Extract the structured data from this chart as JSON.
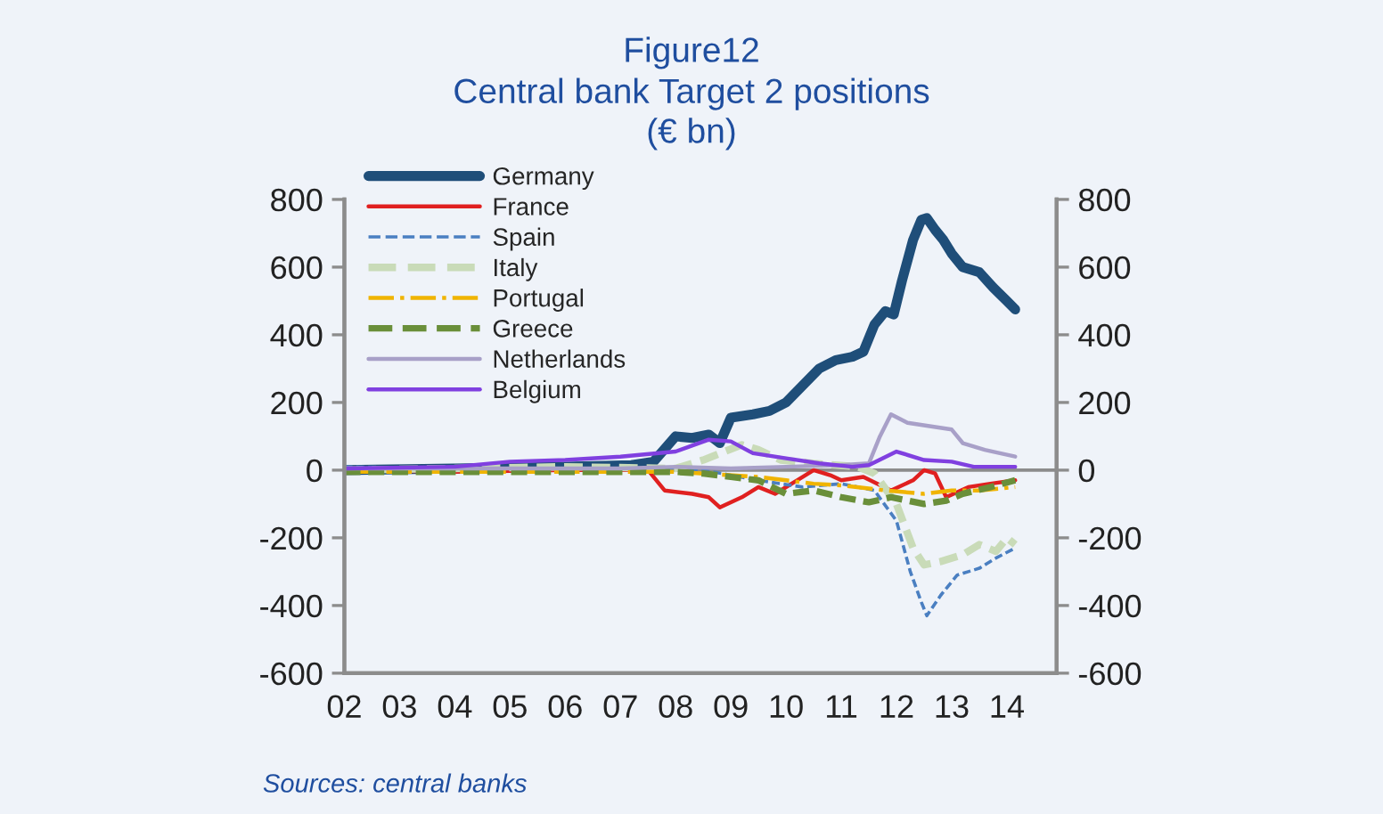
{
  "chart_data": {
    "type": "line",
    "title": "Figure12",
    "subtitle": "Central bank Target 2 positions\n(€ bn)",
    "xlim": [
      2002,
      2014.9
    ],
    "xticks": [
      {
        "value": 2002,
        "label": "02"
      },
      {
        "value": 2003,
        "label": "03"
      },
      {
        "value": 2004,
        "label": "04"
      },
      {
        "value": 2005,
        "label": "05"
      },
      {
        "value": 2006,
        "label": "06"
      },
      {
        "value": 2007,
        "label": "07"
      },
      {
        "value": 2008,
        "label": "08"
      },
      {
        "value": 2009,
        "label": "09"
      },
      {
        "value": 2010,
        "label": "10"
      },
      {
        "value": 2011,
        "label": "11"
      },
      {
        "value": 2012,
        "label": "12"
      },
      {
        "value": 2013,
        "label": "13"
      },
      {
        "value": 2014,
        "label": "14"
      }
    ],
    "ylim": [
      -600,
      800
    ],
    "yticks": [
      -600,
      -400,
      -200,
      0,
      200,
      400,
      600,
      800
    ],
    "y2lim": [
      -600,
      800
    ],
    "y2ticks": [
      -600,
      -400,
      -200,
      0,
      200,
      400,
      600,
      800
    ],
    "grid": false,
    "legend": "top left",
    "ref_lines": [
      {
        "axis": "y",
        "value": 0,
        "color": "#8c8c8c"
      }
    ],
    "series": [
      {
        "name": "Germany",
        "color": "#1f4e79",
        "line_style": "solid",
        "x": [
          2002,
          2004,
          2006,
          2007.2,
          2007.6,
          2008.0,
          2008.3,
          2008.6,
          2008.8,
          2009.0,
          2009.4,
          2009.7,
          2010.0,
          2010.3,
          2010.6,
          2010.9,
          2011.2,
          2011.4,
          2011.6,
          2011.8,
          2011.95,
          2012.1,
          2012.3,
          2012.45,
          2012.55,
          2012.7,
          2012.85,
          2013.0,
          2013.2,
          2013.5,
          2013.75,
          2014.0,
          2014.15
        ],
        "values": [
          0,
          5,
          10,
          15,
          25,
          100,
          95,
          105,
          80,
          155,
          165,
          175,
          200,
          250,
          300,
          325,
          335,
          350,
          430,
          470,
          460,
          560,
          680,
          740,
          745,
          710,
          680,
          640,
          600,
          585,
          540,
          500,
          475
        ]
      },
      {
        "name": "France",
        "color": "#e02020",
        "line_style": "solid",
        "x": [
          2002,
          2004,
          2006,
          2007.5,
          2007.8,
          2008.3,
          2008.6,
          2008.8,
          2009.2,
          2009.5,
          2009.8,
          2010.2,
          2010.5,
          2010.8,
          2011.0,
          2011.4,
          2011.9,
          2012.3,
          2012.5,
          2012.7,
          2012.9,
          2013.3,
          2013.7,
          2014.15
        ],
        "values": [
          0,
          -5,
          0,
          0,
          -60,
          -70,
          -80,
          -110,
          -80,
          -50,
          -70,
          -30,
          0,
          -15,
          -30,
          -20,
          -60,
          -30,
          0,
          -10,
          -80,
          -50,
          -40,
          -30
        ]
      },
      {
        "name": "Spain",
        "color": "#4a7fc1",
        "line_style": "dashed",
        "x": [
          2002,
          2004,
          2006,
          2008.0,
          2008.5,
          2009.5,
          2010.3,
          2011.0,
          2011.6,
          2012.0,
          2012.25,
          2012.45,
          2012.55,
          2012.8,
          2013.1,
          2013.5,
          2013.8,
          2014.15
        ],
        "values": [
          10,
          5,
          5,
          5,
          0,
          -30,
          -50,
          -40,
          -60,
          -150,
          -300,
          -390,
          -430,
          -370,
          -310,
          -290,
          -260,
          -230
        ]
      },
      {
        "name": "Italy",
        "color": "#c9dbb8",
        "line_style": "dashed",
        "x": [
          2002,
          2004,
          2006,
          2008.0,
          2008.5,
          2009.2,
          2009.5,
          2009.9,
          2010.5,
          2011.3,
          2011.6,
          2012.0,
          2012.3,
          2012.5,
          2012.8,
          2013.2,
          2013.5,
          2013.8,
          2014.0,
          2014.15
        ],
        "values": [
          0,
          5,
          10,
          5,
          30,
          75,
          60,
          30,
          20,
          10,
          -10,
          -100,
          -230,
          -280,
          -270,
          -250,
          -220,
          -240,
          -200,
          -220
        ]
      },
      {
        "name": "Portugal",
        "color": "#f0b400",
        "line_style": "dashdot",
        "x": [
          2002,
          2004,
          2006,
          2008.0,
          2008.5,
          2009.5,
          2010.0,
          2010.5,
          2011.0,
          2011.8,
          2012.5,
          2013.0,
          2013.5,
          2014.15
        ],
        "values": [
          -5,
          -5,
          -5,
          -5,
          -10,
          -20,
          -30,
          -40,
          -45,
          -60,
          -70,
          -60,
          -60,
          -50
        ]
      },
      {
        "name": "Greece",
        "color": "#6a8f3a",
        "line_style": "dashed",
        "x": [
          2002,
          2004,
          2006,
          2008.0,
          2008.5,
          2009.0,
          2009.5,
          2010.0,
          2010.5,
          2011.0,
          2011.5,
          2011.9,
          2012.2,
          2012.5,
          2012.9,
          2013.2,
          2013.7,
          2014.15
        ],
        "values": [
          -5,
          -5,
          -5,
          -5,
          -10,
          -20,
          -30,
          -70,
          -60,
          -80,
          -95,
          -80,
          -90,
          -100,
          -90,
          -70,
          -50,
          -30
        ]
      },
      {
        "name": "Netherlands",
        "color": "#a8a0c8",
        "line_style": "solid",
        "x": [
          2002,
          2004,
          2006,
          2007.0,
          2008.0,
          2009.0,
          2010.0,
          2011.0,
          2011.5,
          2011.7,
          2011.9,
          2012.2,
          2012.6,
          2013.0,
          2013.2,
          2013.6,
          2014.15
        ],
        "values": [
          5,
          5,
          5,
          5,
          10,
          5,
          10,
          15,
          20,
          100,
          165,
          140,
          130,
          120,
          80,
          60,
          40
        ]
      },
      {
        "name": "Belgium",
        "color": "#8040e0",
        "line_style": "solid",
        "x": [
          2002,
          2004,
          2005,
          2006,
          2007,
          2008,
          2008.6,
          2009.0,
          2009.4,
          2010.0,
          2010.6,
          2011.2,
          2011.5,
          2012.0,
          2012.5,
          2013.0,
          2013.4,
          2014.15
        ],
        "values": [
          5,
          10,
          25,
          30,
          40,
          55,
          90,
          85,
          50,
          35,
          20,
          10,
          15,
          55,
          30,
          25,
          10,
          10
        ]
      }
    ],
    "annotations": [
      "Sources: central banks"
    ]
  }
}
